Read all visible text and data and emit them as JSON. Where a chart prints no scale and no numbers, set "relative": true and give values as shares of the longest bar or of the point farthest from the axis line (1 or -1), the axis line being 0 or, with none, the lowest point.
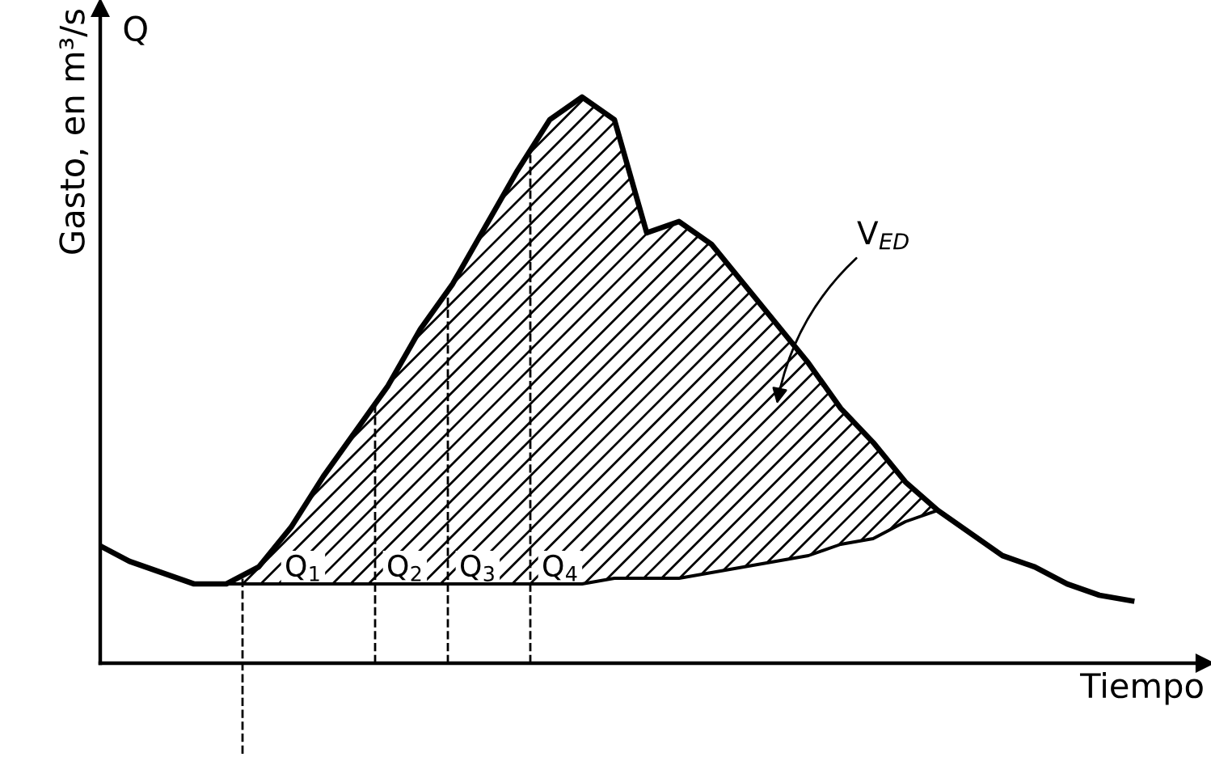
{
  "chart_data": {
    "type": "line",
    "relative": true,
    "xlabel": "Tiempo",
    "ylabel": "Gasto, en m³/s",
    "categories": [
      null,
      null,
      null,
      null,
      null,
      null,
      null,
      null,
      null,
      null,
      null,
      null,
      null,
      null,
      null,
      null,
      null,
      null,
      null,
      null,
      null,
      null,
      null,
      null,
      null,
      null,
      null,
      null,
      null,
      null,
      null,
      null,
      null
    ],
    "series": [
      {
        "color": "#000000",
        "values": [
          0.21,
          0.18,
          0.16,
          0.14,
          0.14,
          0.17,
          0.24,
          0.33,
          0.41,
          0.49,
          0.59,
          0.67,
          0.77,
          0.87,
          0.96,
          1,
          0.96,
          0.76,
          0.78,
          0.74,
          0.67,
          0.6,
          0.53,
          0.45,
          0.39,
          0.32,
          0.27,
          0.23,
          0.19,
          0.17,
          0.14,
          0.12,
          0.11
        ]
      },
      {
        "color": "#000000",
        "values": [
          null,
          null,
          null,
          null,
          0.14,
          0.14,
          0.14,
          0.14,
          0.14,
          0.14,
          0.14,
          0.14,
          0.14,
          0.14,
          0.14,
          0.14,
          0.15,
          0.15,
          0.15,
          0.16,
          0.17,
          0.18,
          0.19,
          0.21,
          0.22,
          0.25,
          0.27,
          null,
          null,
          null,
          null,
          null,
          null
        ]
      }
    ],
    "annotations": [
      "Q",
      "Q$_{1}$",
      "Q$_{2}$",
      "Q$_{3}$",
      "Q$_{4}$",
      "V$_{ED}$"
    ],
    "marker": "none",
    "line_style": "solid"
  }
}
